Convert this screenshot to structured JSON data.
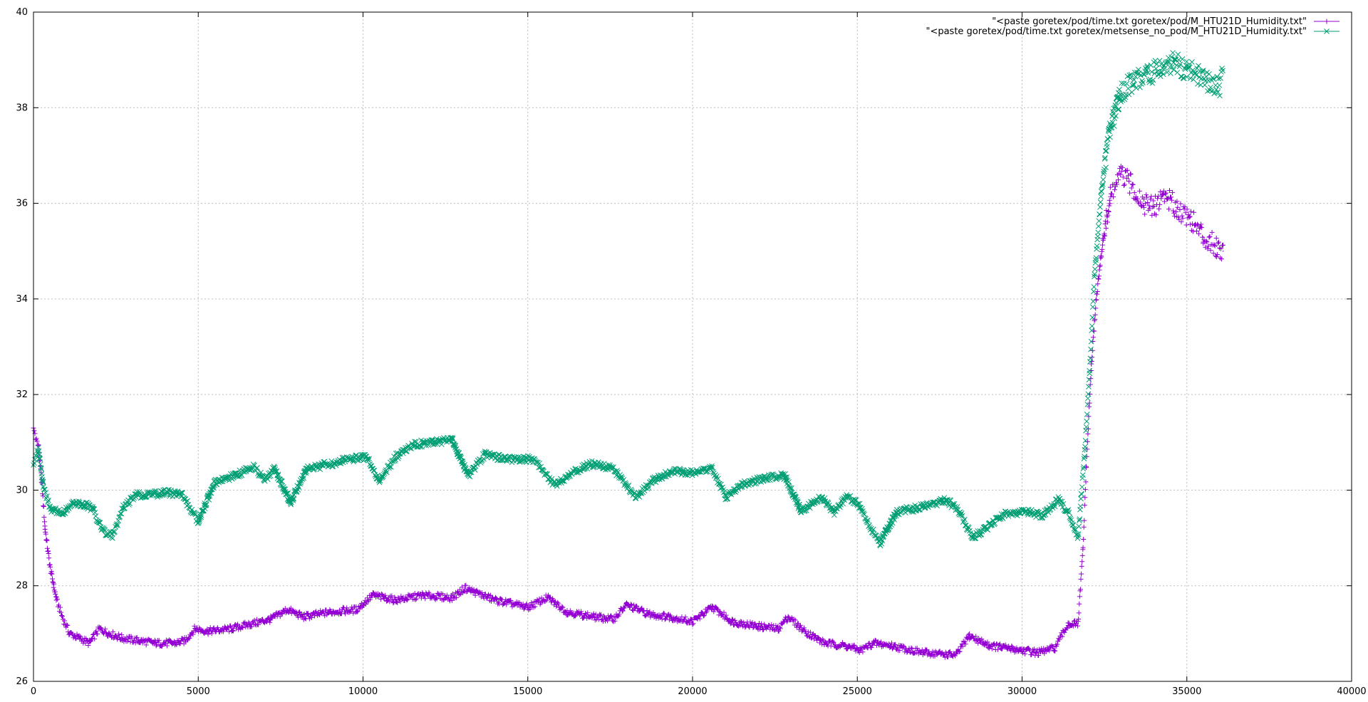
{
  "chart_data": {
    "type": "scatter",
    "title": "",
    "xlabel": "",
    "ylabel": "",
    "xlim": [
      0,
      40000
    ],
    "ylim": [
      26,
      40
    ],
    "x_ticks": [
      0,
      5000,
      10000,
      15000,
      20000,
      25000,
      30000,
      35000,
      40000
    ],
    "y_ticks": [
      26,
      28,
      30,
      32,
      34,
      36,
      38,
      40
    ],
    "grid": true,
    "legend_position": "top-right",
    "series": [
      {
        "name": "\"<paste goretex/pod/time.txt goretex/pod/M_HTU21D_Humidity.txt\"",
        "color": "#9400d3",
        "marker": "plus",
        "points": [
          [
            0,
            31.3
          ],
          [
            150,
            30.9
          ],
          [
            250,
            30.2
          ],
          [
            350,
            29.2
          ],
          [
            500,
            28.4
          ],
          [
            700,
            27.7
          ],
          [
            900,
            27.3
          ],
          [
            1100,
            27.0
          ],
          [
            1400,
            26.9
          ],
          [
            1700,
            26.8
          ],
          [
            2000,
            27.1
          ],
          [
            2300,
            27.0
          ],
          [
            2700,
            26.9
          ],
          [
            3200,
            26.85
          ],
          [
            3700,
            26.8
          ],
          [
            4300,
            26.8
          ],
          [
            4600,
            26.85
          ],
          [
            4900,
            27.1
          ],
          [
            5300,
            27.05
          ],
          [
            6000,
            27.1
          ],
          [
            6600,
            27.2
          ],
          [
            7200,
            27.3
          ],
          [
            7700,
            27.5
          ],
          [
            8200,
            27.35
          ],
          [
            9000,
            27.45
          ],
          [
            9800,
            27.5
          ],
          [
            10300,
            27.8
          ],
          [
            11000,
            27.7
          ],
          [
            11800,
            27.8
          ],
          [
            12700,
            27.75
          ],
          [
            13100,
            27.95
          ],
          [
            14000,
            27.7
          ],
          [
            15000,
            27.55
          ],
          [
            15600,
            27.75
          ],
          [
            16200,
            27.45
          ],
          [
            17000,
            27.35
          ],
          [
            17600,
            27.3
          ],
          [
            18000,
            27.6
          ],
          [
            18700,
            27.4
          ],
          [
            19300,
            27.35
          ],
          [
            20000,
            27.25
          ],
          [
            20600,
            27.55
          ],
          [
            21200,
            27.25
          ],
          [
            22000,
            27.15
          ],
          [
            22600,
            27.1
          ],
          [
            22900,
            27.35
          ],
          [
            23400,
            27.05
          ],
          [
            24000,
            26.8
          ],
          [
            24600,
            26.75
          ],
          [
            25100,
            26.65
          ],
          [
            25500,
            26.8
          ],
          [
            26000,
            26.75
          ],
          [
            27000,
            26.6
          ],
          [
            28000,
            26.55
          ],
          [
            28400,
            26.95
          ],
          [
            29000,
            26.75
          ],
          [
            30000,
            26.65
          ],
          [
            30500,
            26.6
          ],
          [
            31000,
            26.7
          ],
          [
            31400,
            27.2
          ],
          [
            31700,
            27.2
          ],
          [
            31850,
            28.8
          ],
          [
            31950,
            30.5
          ],
          [
            32100,
            32.6
          ],
          [
            32250,
            34.0
          ],
          [
            32450,
            35.2
          ],
          [
            32700,
            36.2
          ],
          [
            33000,
            36.6
          ],
          [
            33300,
            36.4
          ],
          [
            33700,
            36.0
          ],
          [
            34000,
            35.9
          ],
          [
            34300,
            36.2
          ],
          [
            34700,
            35.9
          ],
          [
            35100,
            35.7
          ],
          [
            35500,
            35.3
          ],
          [
            35900,
            35.1
          ],
          [
            36100,
            35.0
          ]
        ]
      },
      {
        "name": "\"<paste goretex/pod/time.txt goretex/metsense_no_pod/M_HTU21D_Humidity.txt\"",
        "color": "#009e73",
        "marker": "cross",
        "points": [
          [
            0,
            30.5
          ],
          [
            150,
            30.9
          ],
          [
            300,
            30.1
          ],
          [
            500,
            29.6
          ],
          [
            900,
            29.55
          ],
          [
            1200,
            29.7
          ],
          [
            1600,
            29.7
          ],
          [
            1800,
            29.6
          ],
          [
            2100,
            29.15
          ],
          [
            2400,
            29.05
          ],
          [
            2700,
            29.6
          ],
          [
            3100,
            29.9
          ],
          [
            3500,
            29.9
          ],
          [
            4000,
            29.95
          ],
          [
            4500,
            29.9
          ],
          [
            5000,
            29.35
          ],
          [
            5500,
            30.15
          ],
          [
            6100,
            30.3
          ],
          [
            6700,
            30.5
          ],
          [
            7000,
            30.2
          ],
          [
            7300,
            30.45
          ],
          [
            7800,
            29.75
          ],
          [
            8300,
            30.45
          ],
          [
            9000,
            30.55
          ],
          [
            9600,
            30.65
          ],
          [
            10100,
            30.7
          ],
          [
            10500,
            30.2
          ],
          [
            11000,
            30.7
          ],
          [
            11500,
            30.95
          ],
          [
            12100,
            31.0
          ],
          [
            12700,
            31.05
          ],
          [
            13200,
            30.3
          ],
          [
            13700,
            30.75
          ],
          [
            14300,
            30.65
          ],
          [
            15200,
            30.65
          ],
          [
            15800,
            30.1
          ],
          [
            16300,
            30.35
          ],
          [
            16900,
            30.55
          ],
          [
            17600,
            30.45
          ],
          [
            18300,
            29.85
          ],
          [
            18800,
            30.2
          ],
          [
            19400,
            30.4
          ],
          [
            20100,
            30.35
          ],
          [
            20600,
            30.45
          ],
          [
            21000,
            29.85
          ],
          [
            21600,
            30.15
          ],
          [
            22200,
            30.25
          ],
          [
            22800,
            30.3
          ],
          [
            23300,
            29.55
          ],
          [
            23900,
            29.85
          ],
          [
            24300,
            29.55
          ],
          [
            24700,
            29.9
          ],
          [
            25100,
            29.65
          ],
          [
            25400,
            29.2
          ],
          [
            25700,
            28.9
          ],
          [
            26200,
            29.55
          ],
          [
            27000,
            29.65
          ],
          [
            27700,
            29.8
          ],
          [
            28100,
            29.55
          ],
          [
            28500,
            29.0
          ],
          [
            29000,
            29.25
          ],
          [
            29500,
            29.5
          ],
          [
            30200,
            29.55
          ],
          [
            30600,
            29.45
          ],
          [
            31100,
            29.8
          ],
          [
            31400,
            29.55
          ],
          [
            31700,
            29.0
          ],
          [
            31900,
            30.8
          ],
          [
            32050,
            32.5
          ],
          [
            32200,
            34.5
          ],
          [
            32400,
            36.2
          ],
          [
            32650,
            37.5
          ],
          [
            33000,
            38.3
          ],
          [
            33400,
            38.6
          ],
          [
            33800,
            38.7
          ],
          [
            34200,
            38.8
          ],
          [
            34600,
            38.95
          ],
          [
            35000,
            38.8
          ],
          [
            35500,
            38.6
          ],
          [
            36000,
            38.4
          ],
          [
            36100,
            38.8
          ]
        ]
      }
    ]
  }
}
